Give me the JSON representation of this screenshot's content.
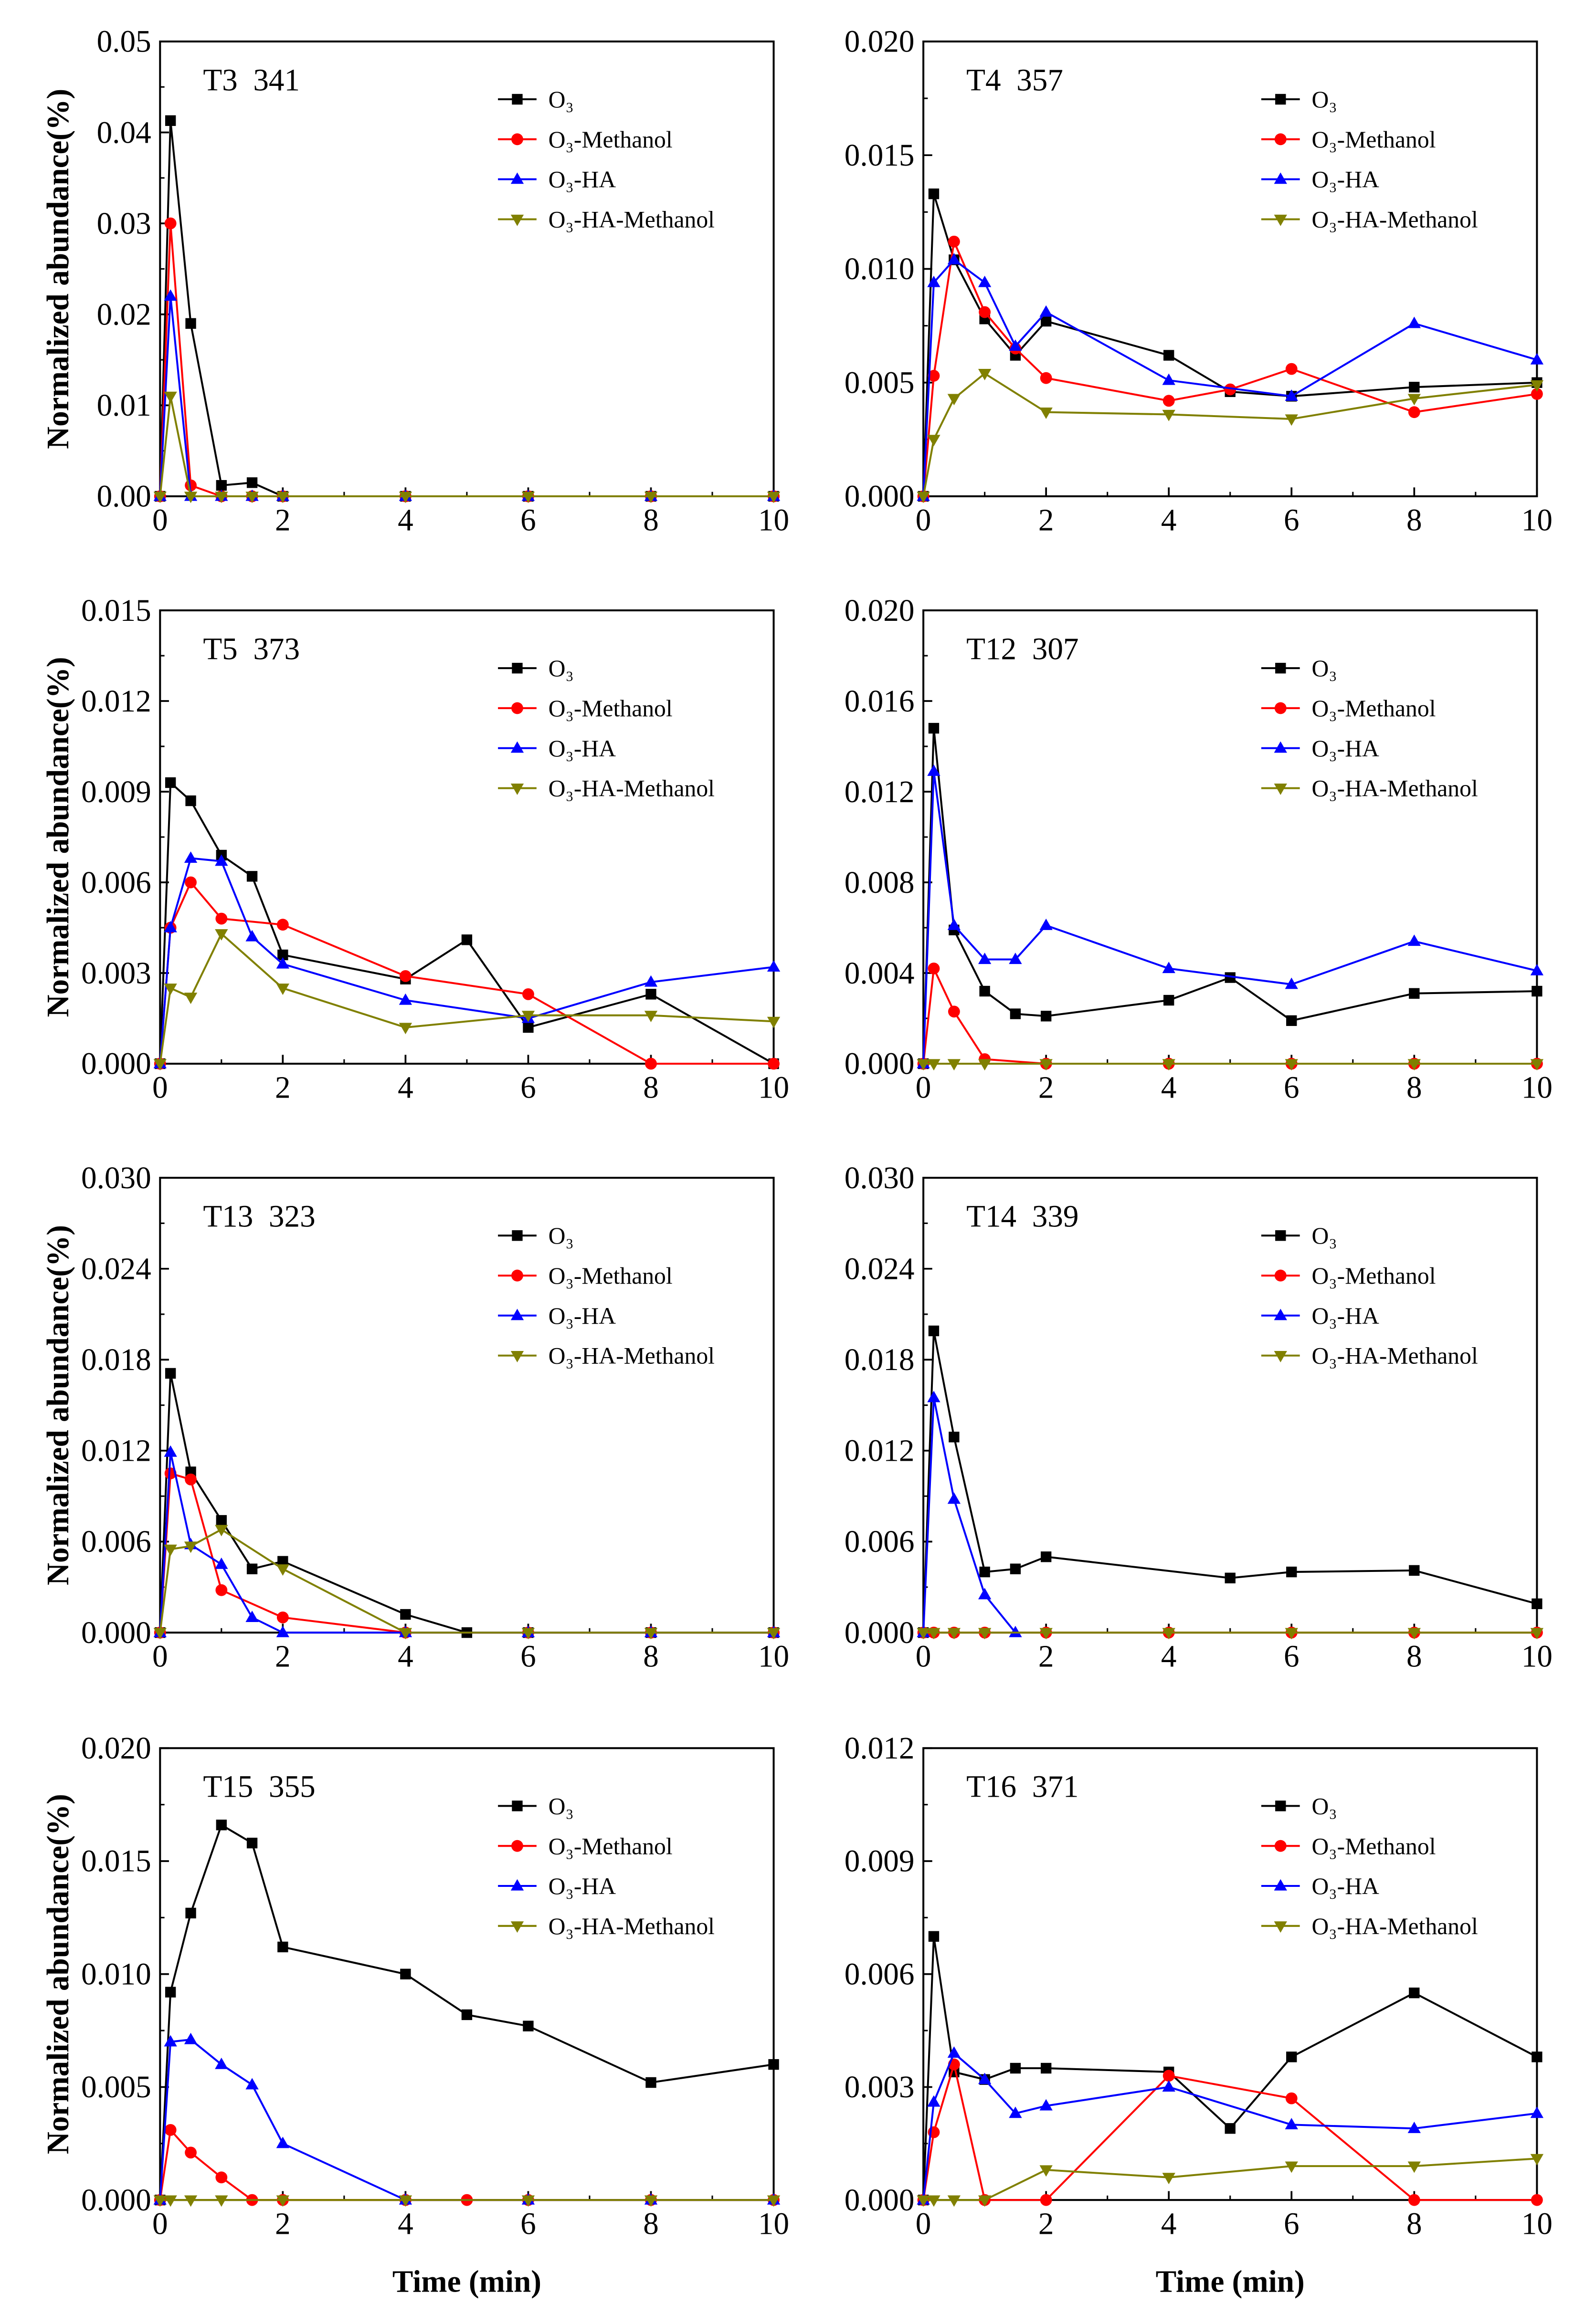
{
  "chart_data": [
    {
      "type": "line",
      "title": "T3  341",
      "xlabel": "",
      "ylabel": "Normalized abundance(%)",
      "xlim": [
        0,
        10
      ],
      "ylim": [
        0,
        0.05
      ],
      "xticks": [
        "0",
        "2",
        "4",
        "6",
        "8",
        "10"
      ],
      "yticks": [
        "0.00",
        "0.01",
        "0.02",
        "0.03",
        "0.04",
        "0.05"
      ],
      "legend": "top-right",
      "series": [
        {
          "name": "O₃",
          "color": "#000000",
          "marker": "square",
          "x": [
            0,
            0.17,
            0.5,
            1,
            1.5,
            2,
            4,
            6,
            8,
            10
          ],
          "y": [
            0,
            0.0413,
            0.019,
            0.0012,
            0.0015,
            0,
            0,
            0,
            0,
            0
          ]
        },
        {
          "name": "O₃-Methanol",
          "color": "#ff0000",
          "marker": "circle",
          "x": [
            0,
            0.17,
            0.5,
            1,
            1.5,
            2,
            4,
            6,
            8,
            10
          ],
          "y": [
            0,
            0.03,
            0.0012,
            0,
            0,
            0,
            0,
            0,
            0,
            0
          ]
        },
        {
          "name": "O₃-HA",
          "color": "#0000ff",
          "marker": "triangle-up",
          "x": [
            0,
            0.17,
            0.5,
            1,
            1.5,
            2,
            4,
            6,
            8,
            10
          ],
          "y": [
            0,
            0.022,
            0,
            0,
            0,
            0,
            0,
            0,
            0,
            0
          ]
        },
        {
          "name": "O₃-HA-Methanol",
          "color": "#808000",
          "marker": "triangle-down",
          "x": [
            0,
            0.17,
            0.5,
            1,
            1.5,
            2,
            4,
            6,
            8,
            10
          ],
          "y": [
            0,
            0.011,
            0,
            0,
            0,
            0,
            0,
            0,
            0,
            0
          ]
        }
      ]
    },
    {
      "type": "line",
      "title": "T4  357",
      "xlabel": "",
      "ylabel": "",
      "xlim": [
        0,
        10
      ],
      "ylim": [
        0,
        0.02
      ],
      "xticks": [
        "0",
        "2",
        "4",
        "6",
        "8",
        "10"
      ],
      "yticks": [
        "0.000",
        "0.005",
        "0.010",
        "0.015",
        "0.020"
      ],
      "legend": "top-right",
      "series": [
        {
          "name": "O₃",
          "color": "#000000",
          "marker": "square",
          "x": [
            0,
            0.17,
            0.5,
            1,
            1.5,
            2,
            4,
            5,
            6,
            8,
            10
          ],
          "y": [
            0,
            0.0133,
            0.0104,
            0.0078,
            0.0062,
            0.0077,
            0.0062,
            0.0046,
            0.0044,
            0.0048,
            0.005
          ]
        },
        {
          "name": "O₃-Methanol",
          "color": "#ff0000",
          "marker": "circle",
          "x": [
            0,
            0.17,
            0.5,
            1,
            1.5,
            2,
            4,
            5,
            6,
            8,
            10
          ],
          "y": [
            0,
            0.0053,
            0.0112,
            0.0081,
            0.0065,
            0.0052,
            0.0042,
            0.0047,
            0.0056,
            0.0037,
            0.0045
          ]
        },
        {
          "name": "O₃-HA",
          "color": "#0000ff",
          "marker": "triangle-up",
          "x": [
            0,
            0.17,
            0.5,
            1,
            1.5,
            2,
            4,
            6,
            8,
            10
          ],
          "y": [
            0,
            0.0094,
            0.0104,
            0.0094,
            0.0066,
            0.0081,
            0.0051,
            0.0044,
            0.0076,
            0.006
          ]
        },
        {
          "name": "O₃-HA-Methanol",
          "color": "#808000",
          "marker": "triangle-down",
          "x": [
            0,
            0.17,
            0.5,
            1,
            2,
            4,
            6,
            8,
            10
          ],
          "y": [
            0,
            0.0025,
            0.0043,
            0.0054,
            0.0037,
            0.0036,
            0.0034,
            0.0043,
            0.0049
          ]
        }
      ]
    },
    {
      "type": "line",
      "title": "T5  373",
      "xlabel": "",
      "ylabel": "Normalized abundance(%)",
      "xlim": [
        0,
        10
      ],
      "ylim": [
        0,
        0.015
      ],
      "xticks": [
        "0",
        "2",
        "4",
        "6",
        "8",
        "10"
      ],
      "yticks": [
        "0.000",
        "0.003",
        "0.006",
        "0.009",
        "0.012",
        "0.015"
      ],
      "legend": "top-right",
      "series": [
        {
          "name": "O₃",
          "color": "#000000",
          "marker": "square",
          "x": [
            0,
            0.17,
            0.5,
            1,
            1.5,
            2,
            4,
            5,
            6,
            8,
            10
          ],
          "y": [
            0,
            0.0093,
            0.0087,
            0.0069,
            0.0062,
            0.0036,
            0.0028,
            0.0041,
            0.0012,
            0.0023,
            0
          ]
        },
        {
          "name": "O₃-Methanol",
          "color": "#ff0000",
          "marker": "circle",
          "x": [
            0,
            0.17,
            0.5,
            1,
            2,
            4,
            6,
            8,
            10
          ],
          "y": [
            0,
            0.0045,
            0.006,
            0.0048,
            0.0046,
            0.0029,
            0.0023,
            0,
            0
          ]
        },
        {
          "name": "O₃-HA",
          "color": "#0000ff",
          "marker": "triangle-up",
          "x": [
            0,
            0.17,
            0.5,
            1,
            1.5,
            2,
            4,
            6,
            8,
            10
          ],
          "y": [
            0,
            0.0045,
            0.0068,
            0.0067,
            0.0042,
            0.0033,
            0.0021,
            0.0015,
            0.0027,
            0.0032
          ]
        },
        {
          "name": "O₃-HA-Methanol",
          "color": "#808000",
          "marker": "triangle-down",
          "x": [
            0,
            0.17,
            0.5,
            1,
            2,
            4,
            6,
            8,
            10
          ],
          "y": [
            0,
            0.0025,
            0.0022,
            0.0043,
            0.0025,
            0.0012,
            0.0016,
            0.0016,
            0.0014
          ]
        }
      ]
    },
    {
      "type": "line",
      "title": "T12  307",
      "xlabel": "",
      "ylabel": "",
      "xlim": [
        0,
        10
      ],
      "ylim": [
        0,
        0.02
      ],
      "xticks": [
        "0",
        "2",
        "4",
        "6",
        "8",
        "10"
      ],
      "yticks": [
        "0.000",
        "0.004",
        "0.008",
        "0.012",
        "0.016",
        "0.020"
      ],
      "legend": "top-right",
      "series": [
        {
          "name": "O₃",
          "color": "#000000",
          "marker": "square",
          "x": [
            0,
            0.17,
            0.5,
            1,
            1.5,
            2,
            4,
            5,
            6,
            8,
            10
          ],
          "y": [
            0,
            0.0148,
            0.0059,
            0.0032,
            0.0022,
            0.0021,
            0.0028,
            0.0038,
            0.0019,
            0.0031,
            0.0032
          ]
        },
        {
          "name": "O₃-Methanol",
          "color": "#ff0000",
          "marker": "circle",
          "x": [
            0,
            0.17,
            0.5,
            1,
            2,
            4,
            6,
            8,
            10
          ],
          "y": [
            0,
            0.0042,
            0.0023,
            0.0002,
            0,
            0,
            0,
            0,
            0
          ]
        },
        {
          "name": "O₃-HA",
          "color": "#0000ff",
          "marker": "triangle-up",
          "x": [
            0,
            0.17,
            0.5,
            1,
            1.5,
            2,
            4,
            6,
            8,
            10
          ],
          "y": [
            0,
            0.0129,
            0.0061,
            0.0046,
            0.0046,
            0.0061,
            0.0042,
            0.0035,
            0.0054,
            0.0041
          ]
        },
        {
          "name": "O₃-HA-Methanol",
          "color": "#808000",
          "marker": "triangle-down",
          "x": [
            0,
            0.17,
            0.5,
            1,
            2,
            4,
            6,
            8,
            10
          ],
          "y": [
            0,
            0,
            0,
            0,
            0,
            0,
            0,
            0,
            0
          ]
        }
      ]
    },
    {
      "type": "line",
      "title": "T13  323",
      "xlabel": "",
      "ylabel": "Normalized abundance(%)",
      "xlim": [
        0,
        10
      ],
      "ylim": [
        0,
        0.03
      ],
      "xticks": [
        "0",
        "2",
        "4",
        "6",
        "8",
        "10"
      ],
      "yticks": [
        "0.000",
        "0.006",
        "0.012",
        "0.018",
        "0.024",
        "0.030"
      ],
      "legend": "top-right",
      "series": [
        {
          "name": "O₃",
          "color": "#000000",
          "marker": "square",
          "x": [
            0,
            0.17,
            0.5,
            1,
            1.5,
            2,
            4,
            5,
            6,
            8,
            10
          ],
          "y": [
            0,
            0.0171,
            0.0106,
            0.0074,
            0.0042,
            0.0047,
            0.0012,
            0,
            0,
            0,
            0
          ]
        },
        {
          "name": "O₃-Methanol",
          "color": "#ff0000",
          "marker": "circle",
          "x": [
            0,
            0.17,
            0.5,
            1,
            2,
            4,
            6,
            8,
            10
          ],
          "y": [
            0,
            0.0105,
            0.0101,
            0.0028,
            0.001,
            0,
            0,
            0,
            0
          ]
        },
        {
          "name": "O₃-HA",
          "color": "#0000ff",
          "marker": "triangle-up",
          "x": [
            0,
            0.17,
            0.5,
            1,
            1.5,
            2,
            4,
            6,
            8,
            10
          ],
          "y": [
            0,
            0.0119,
            0.0058,
            0.0045,
            0.001,
            0,
            0,
            0,
            0,
            0
          ]
        },
        {
          "name": "O₃-HA-Methanol",
          "color": "#808000",
          "marker": "triangle-down",
          "x": [
            0,
            0.17,
            0.5,
            1,
            2,
            4,
            6,
            8,
            10
          ],
          "y": [
            0,
            0.0055,
            0.0057,
            0.0068,
            0.0042,
            0,
            0,
            0,
            0
          ]
        }
      ]
    },
    {
      "type": "line",
      "title": "T14  339",
      "xlabel": "",
      "ylabel": "",
      "xlim": [
        0,
        10
      ],
      "ylim": [
        0,
        0.03
      ],
      "xticks": [
        "0",
        "2",
        "4",
        "6",
        "8",
        "10"
      ],
      "yticks": [
        "0.000",
        "0.006",
        "0.012",
        "0.018",
        "0.024",
        "0.030"
      ],
      "legend": "top-right",
      "series": [
        {
          "name": "O₃",
          "color": "#000000",
          "marker": "square",
          "x": [
            0,
            0.17,
            0.5,
            1,
            1.5,
            2,
            5,
            6,
            8,
            10
          ],
          "y": [
            0,
            0.0199,
            0.0129,
            0.004,
            0.0042,
            0.005,
            0.0036,
            0.004,
            0.0041,
            0.0019
          ]
        },
        {
          "name": "O₃-Methanol",
          "color": "#ff0000",
          "marker": "circle",
          "x": [
            0,
            0.17,
            0.5,
            1,
            2,
            4,
            6,
            8,
            10
          ],
          "y": [
            0,
            0,
            0,
            0,
            0,
            0,
            0,
            0,
            0
          ]
        },
        {
          "name": "O₃-HA",
          "color": "#0000ff",
          "marker": "triangle-up",
          "x": [
            0,
            0.17,
            0.5,
            1,
            1.5
          ],
          "y": [
            0,
            0.0155,
            0.0088,
            0.0025,
            0
          ]
        },
        {
          "name": "O₃-HA-Methanol",
          "color": "#808000",
          "marker": "triangle-down",
          "x": [
            0,
            0.17,
            0.5,
            1,
            2,
            4,
            6,
            8,
            10
          ],
          "y": [
            0,
            0,
            0,
            0,
            0,
            0,
            0,
            0,
            0
          ]
        }
      ]
    },
    {
      "type": "line",
      "title": "T15  355",
      "xlabel": "Time (min)",
      "ylabel": "Normalized abundance(%)",
      "xlim": [
        0,
        10
      ],
      "ylim": [
        0,
        0.02
      ],
      "xticks": [
        "0",
        "2",
        "4",
        "6",
        "8",
        "10"
      ],
      "yticks": [
        "0.000",
        "0.005",
        "0.010",
        "0.015",
        "0.020"
      ],
      "legend": "top-right",
      "series": [
        {
          "name": "O₃",
          "color": "#000000",
          "marker": "square",
          "x": [
            0,
            0.17,
            0.5,
            1,
            1.5,
            2,
            4,
            5,
            6,
            8,
            10
          ],
          "y": [
            0,
            0.0092,
            0.0127,
            0.0166,
            0.0158,
            0.0112,
            0.01,
            0.0082,
            0.0077,
            0.0052,
            0.006
          ]
        },
        {
          "name": "O₃-Methanol",
          "color": "#ff0000",
          "marker": "circle",
          "x": [
            0,
            0.17,
            0.5,
            1,
            1.5,
            2,
            4,
            5,
            6,
            8,
            10
          ],
          "y": [
            0,
            0.0031,
            0.0021,
            0.001,
            0,
            0,
            0,
            0,
            0,
            0,
            0
          ]
        },
        {
          "name": "O₃-HA",
          "color": "#0000ff",
          "marker": "triangle-up",
          "x": [
            0,
            0.17,
            0.5,
            1,
            1.5,
            2,
            4,
            6,
            8,
            10
          ],
          "y": [
            0,
            0.007,
            0.0071,
            0.006,
            0.0051,
            0.0025,
            0,
            0,
            0,
            0
          ]
        },
        {
          "name": "O₃-HA-Methanol",
          "color": "#808000",
          "marker": "triangle-down",
          "x": [
            0,
            0.17,
            0.5,
            1,
            2,
            4,
            6,
            8,
            10
          ],
          "y": [
            0,
            0,
            0,
            0,
            0,
            0,
            0,
            0,
            0
          ]
        }
      ]
    },
    {
      "type": "line",
      "title": "T16  371",
      "xlabel": "Time (min)",
      "ylabel": "",
      "xlim": [
        0,
        10
      ],
      "ylim": [
        0,
        0.012
      ],
      "xticks": [
        "0",
        "2",
        "4",
        "6",
        "8",
        "10"
      ],
      "yticks": [
        "0.000",
        "0.003",
        "0.006",
        "0.009",
        "0.012"
      ],
      "legend": "top-right",
      "series": [
        {
          "name": "O₃",
          "color": "#000000",
          "marker": "square",
          "x": [
            0,
            0.17,
            0.5,
            1,
            1.5,
            2,
            4,
            5,
            6,
            8,
            10
          ],
          "y": [
            0,
            0.007,
            0.0034,
            0.0032,
            0.0035,
            0.0035,
            0.0034,
            0.0019,
            0.0038,
            0.0055,
            0.0038
          ]
        },
        {
          "name": "O₃-Methanol",
          "color": "#ff0000",
          "marker": "circle",
          "x": [
            0,
            0.17,
            0.5,
            1,
            2,
            4,
            6,
            8,
            10
          ],
          "y": [
            0,
            0.0018,
            0.0036,
            0,
            0,
            0.0033,
            0.0027,
            0,
            0
          ]
        },
        {
          "name": "O₃-HA",
          "color": "#0000ff",
          "marker": "triangle-up",
          "x": [
            0,
            0.17,
            0.5,
            1,
            1.5,
            2,
            4,
            6,
            8,
            10
          ],
          "y": [
            0,
            0.0026,
            0.0039,
            0.0032,
            0.0023,
            0.0025,
            0.003,
            0.002,
            0.0019,
            0.0023
          ]
        },
        {
          "name": "O₃-HA-Methanol",
          "color": "#808000",
          "marker": "triangle-down",
          "x": [
            0,
            0.17,
            0.5,
            1,
            2,
            4,
            6,
            8,
            10
          ],
          "y": [
            0,
            0,
            0,
            0,
            0.0008,
            0.0006,
            0.0009,
            0.0009,
            0.0011
          ]
        }
      ]
    }
  ]
}
